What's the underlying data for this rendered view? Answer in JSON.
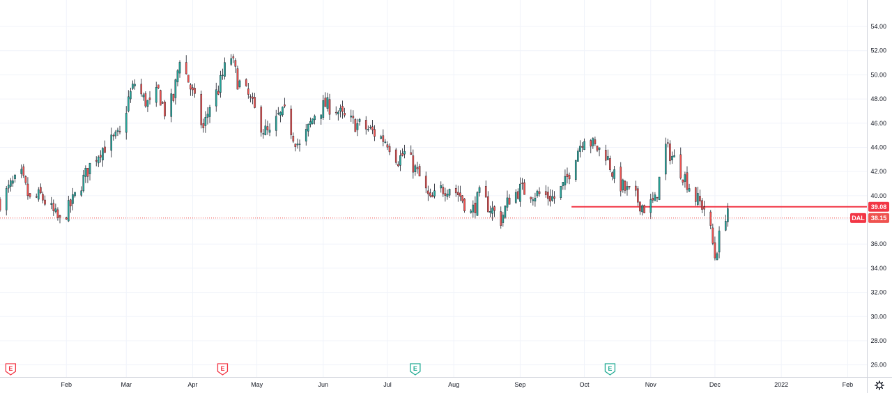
{
  "chart_data": {
    "type": "candlestick",
    "symbol": "DAL",
    "last_price": "38.15",
    "horizontal_line": {
      "value": "39.08",
      "start_date": "2021-09-25",
      "color": "#f23645"
    },
    "ylim": [
      25,
      55.5
    ],
    "y_ticks": [
      "26.00",
      "28.00",
      "30.00",
      "32.00",
      "34.00",
      "36.00",
      "38.00",
      "40.00",
      "42.00",
      "44.00",
      "46.00",
      "48.00",
      "50.00",
      "52.00",
      "54.00"
    ],
    "x_ticks": [
      {
        "label": "Feb",
        "date": "2021-02-01"
      },
      {
        "label": "Mar",
        "date": "2021-03-01"
      },
      {
        "label": "Apr",
        "date": "2021-04-01"
      },
      {
        "label": "May",
        "date": "2021-05-01"
      },
      {
        "label": "Jun",
        "date": "2021-06-01"
      },
      {
        "label": "Jul",
        "date": "2021-07-01"
      },
      {
        "label": "Aug",
        "date": "2021-08-01"
      },
      {
        "label": "Sep",
        "date": "2021-09-01"
      },
      {
        "label": "Oct",
        "date": "2021-10-01"
      },
      {
        "label": "Nov",
        "date": "2021-11-01"
      },
      {
        "label": "Dec",
        "date": "2021-12-01"
      },
      {
        "label": "2022",
        "date": "2022-01-01"
      },
      {
        "label": "Feb",
        "date": "2022-02-01"
      }
    ],
    "x_range": [
      "2021-01-01",
      "2022-02-10"
    ],
    "earnings_markers": [
      {
        "label": "E",
        "date": "2021-01-06",
        "kind": "miss"
      },
      {
        "label": "E",
        "date": "2021-04-15",
        "kind": "miss"
      },
      {
        "label": "E",
        "date": "2021-07-14",
        "kind": "beat"
      },
      {
        "label": "E",
        "date": "2021-10-13",
        "kind": "beat"
      }
    ],
    "close_path": [
      [
        "2021-01-01",
        39.5
      ],
      [
        "2021-01-06",
        40.8
      ],
      [
        "2021-01-11",
        41.6
      ],
      [
        "2021-01-15",
        39.6
      ],
      [
        "2021-01-20",
        40.0
      ],
      [
        "2021-01-25",
        38.8
      ],
      [
        "2021-01-29",
        37.8
      ],
      [
        "2021-02-03",
        39.2
      ],
      [
        "2021-02-08",
        41.0
      ],
      [
        "2021-02-12",
        42.5
      ],
      [
        "2021-02-17",
        43.8
      ],
      [
        "2021-02-22",
        44.5
      ],
      [
        "2021-02-26",
        45.0
      ],
      [
        "2021-03-02",
        48.0
      ],
      [
        "2021-03-05",
        49.3
      ],
      [
        "2021-03-09",
        48.0
      ],
      [
        "2021-03-12",
        47.5
      ],
      [
        "2021-03-16",
        48.6
      ],
      [
        "2021-03-19",
        47.0
      ],
      [
        "2021-03-23",
        48.0
      ],
      [
        "2021-03-26",
        51.5
      ],
      [
        "2021-03-30",
        49.5
      ],
      [
        "2021-04-02",
        47.8
      ],
      [
        "2021-04-06",
        45.5
      ],
      [
        "2021-04-09",
        47.5
      ],
      [
        "2021-04-13",
        48.8
      ],
      [
        "2021-04-16",
        50.5
      ],
      [
        "2021-04-19",
        51.5
      ],
      [
        "2021-04-22",
        49.5
      ],
      [
        "2021-04-27",
        48.2
      ],
      [
        "2021-04-30",
        47.0
      ],
      [
        "2021-05-04",
        45.5
      ],
      [
        "2021-05-07",
        45.0
      ],
      [
        "2021-05-11",
        46.5
      ],
      [
        "2021-05-14",
        46.8
      ],
      [
        "2021-05-18",
        45.0
      ],
      [
        "2021-05-21",
        44.0
      ],
      [
        "2021-05-25",
        45.5
      ],
      [
        "2021-05-28",
        46.8
      ],
      [
        "2021-06-02",
        47.5
      ],
      [
        "2021-06-07",
        47.2
      ],
      [
        "2021-06-10",
        46.5
      ],
      [
        "2021-06-15",
        46.0
      ],
      [
        "2021-06-18",
        45.8
      ],
      [
        "2021-06-23",
        45.4
      ],
      [
        "2021-06-28",
        44.8
      ],
      [
        "2021-07-01",
        44.5
      ],
      [
        "2021-07-06",
        43.0
      ],
      [
        "2021-07-09",
        43.5
      ],
      [
        "2021-07-13",
        42.5
      ],
      [
        "2021-07-16",
        41.5
      ],
      [
        "2021-07-21",
        39.5
      ],
      [
        "2021-07-26",
        40.5
      ],
      [
        "2021-07-30",
        40.8
      ],
      [
        "2021-08-04",
        40.0
      ],
      [
        "2021-08-09",
        38.5
      ],
      [
        "2021-08-13",
        40.0
      ],
      [
        "2021-08-18",
        39.0
      ],
      [
        "2021-08-23",
        38.0
      ],
      [
        "2021-08-27",
        39.8
      ],
      [
        "2021-09-01",
        40.5
      ],
      [
        "2021-09-07",
        40.2
      ],
      [
        "2021-09-13",
        40.0
      ],
      [
        "2021-09-17",
        39.8
      ],
      [
        "2021-09-22",
        41.0
      ],
      [
        "2021-09-27",
        43.5
      ],
      [
        "2021-10-01",
        45.0
      ],
      [
        "2021-10-06",
        44.0
      ],
      [
        "2021-10-11",
        43.5
      ],
      [
        "2021-10-15",
        41.5
      ],
      [
        "2021-10-20",
        40.5
      ],
      [
        "2021-10-25",
        39.8
      ],
      [
        "2021-10-29",
        39.0
      ],
      [
        "2021-11-03",
        39.5
      ],
      [
        "2021-11-08",
        44.0
      ],
      [
        "2021-11-12",
        43.0
      ],
      [
        "2021-11-17",
        41.5
      ],
      [
        "2021-11-22",
        39.8
      ],
      [
        "2021-11-26",
        39.0
      ],
      [
        "2021-11-29",
        37.0
      ],
      [
        "2021-12-01",
        35.0
      ],
      [
        "2021-12-03",
        36.5
      ],
      [
        "2021-12-06",
        38.5
      ],
      [
        "2021-12-07",
        39.0
      ]
    ]
  }
}
